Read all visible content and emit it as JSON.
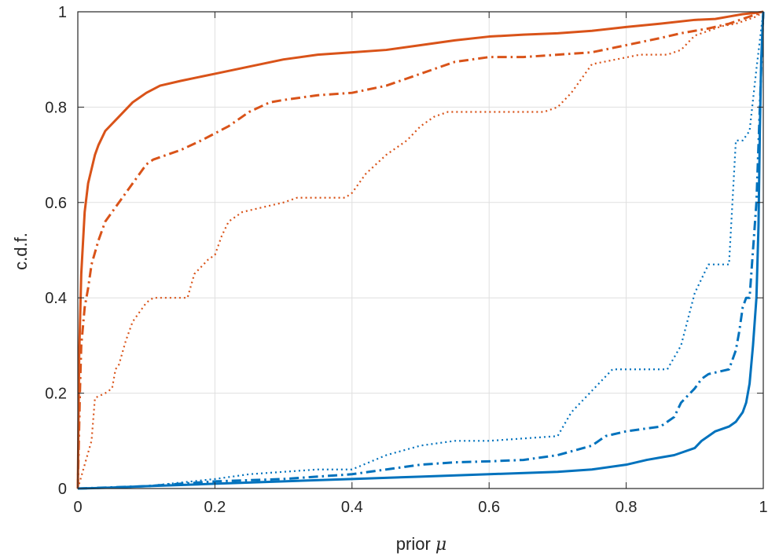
{
  "colors": {
    "orange": "#D95319",
    "blue": "#0072BD",
    "grid": "#dfdfdf",
    "axis": "#262626"
  },
  "chart_data": {
    "type": "line",
    "title": "",
    "xlabel_prefix": "prior",
    "xlabel_symbol": "μ",
    "ylabel": "c.d.f.",
    "xlim": [
      0,
      1
    ],
    "ylim": [
      0,
      1
    ],
    "grid": true,
    "legend": "none",
    "xticks": [
      "0",
      "0.2",
      "0.4",
      "0.6",
      "0.8",
      "1"
    ],
    "yticks": [
      "0",
      "0.2",
      "0.4",
      "0.6",
      "0.8",
      "1"
    ],
    "xtick_values": [
      0,
      0.2,
      0.4,
      0.6,
      0.8,
      1
    ],
    "ytick_values": [
      0,
      0.2,
      0.4,
      0.6,
      0.8,
      1
    ],
    "series": [
      {
        "color": "orange",
        "style": "solid",
        "x": [
          0,
          0.002,
          0.005,
          0.01,
          0.015,
          0.02,
          0.025,
          0.03,
          0.04,
          0.05,
          0.06,
          0.07,
          0.08,
          0.09,
          0.1,
          0.12,
          0.15,
          0.2,
          0.25,
          0.3,
          0.35,
          0.4,
          0.45,
          0.5,
          0.55,
          0.6,
          0.65,
          0.7,
          0.75,
          0.8,
          0.85,
          0.9,
          0.93,
          0.95,
          0.97,
          0.99,
          1
        ],
        "y": [
          0,
          0.28,
          0.45,
          0.58,
          0.64,
          0.67,
          0.7,
          0.72,
          0.75,
          0.765,
          0.78,
          0.795,
          0.81,
          0.82,
          0.83,
          0.845,
          0.855,
          0.87,
          0.885,
          0.9,
          0.91,
          0.915,
          0.92,
          0.93,
          0.94,
          0.948,
          0.952,
          0.955,
          0.96,
          0.968,
          0.975,
          0.983,
          0.985,
          0.99,
          0.995,
          0.998,
          1
        ]
      },
      {
        "color": "orange",
        "style": "dashdot",
        "x": [
          0,
          0.003,
          0.005,
          0.01,
          0.015,
          0.02,
          0.03,
          0.035,
          0.04,
          0.05,
          0.06,
          0.07,
          0.08,
          0.09,
          0.1,
          0.11,
          0.12,
          0.15,
          0.18,
          0.2,
          0.22,
          0.25,
          0.28,
          0.3,
          0.35,
          0.4,
          0.45,
          0.5,
          0.55,
          0.6,
          0.65,
          0.7,
          0.75,
          0.8,
          0.85,
          0.88,
          0.9,
          0.92,
          0.95,
          0.97,
          0.99,
          1
        ],
        "y": [
          0,
          0.2,
          0.3,
          0.38,
          0.42,
          0.47,
          0.52,
          0.54,
          0.56,
          0.58,
          0.6,
          0.62,
          0.64,
          0.66,
          0.68,
          0.69,
          0.695,
          0.71,
          0.73,
          0.745,
          0.76,
          0.79,
          0.81,
          0.815,
          0.825,
          0.83,
          0.845,
          0.87,
          0.895,
          0.905,
          0.905,
          0.91,
          0.915,
          0.93,
          0.945,
          0.955,
          0.96,
          0.965,
          0.975,
          0.985,
          0.995,
          1
        ]
      },
      {
        "color": "orange",
        "style": "dotted",
        "x": [
          0,
          0.02,
          0.025,
          0.04,
          0.05,
          0.055,
          0.06,
          0.07,
          0.08,
          0.09,
          0.1,
          0.11,
          0.12,
          0.16,
          0.17,
          0.19,
          0.2,
          0.21,
          0.22,
          0.24,
          0.27,
          0.3,
          0.32,
          0.39,
          0.4,
          0.42,
          0.45,
          0.48,
          0.5,
          0.52,
          0.54,
          0.6,
          0.68,
          0.7,
          0.72,
          0.74,
          0.75,
          0.82,
          0.86,
          0.88,
          0.9,
          0.92,
          0.94,
          0.96,
          0.97,
          0.99,
          1
        ],
        "y": [
          0,
          0.1,
          0.19,
          0.2,
          0.21,
          0.25,
          0.26,
          0.31,
          0.35,
          0.37,
          0.39,
          0.4,
          0.4,
          0.4,
          0.45,
          0.48,
          0.49,
          0.53,
          0.56,
          0.58,
          0.59,
          0.6,
          0.61,
          0.61,
          0.62,
          0.66,
          0.7,
          0.73,
          0.76,
          0.78,
          0.79,
          0.79,
          0.79,
          0.8,
          0.83,
          0.87,
          0.89,
          0.91,
          0.91,
          0.92,
          0.95,
          0.96,
          0.97,
          0.975,
          0.98,
          0.99,
          1
        ]
      },
      {
        "color": "blue",
        "style": "solid",
        "x": [
          0,
          0.05,
          0.1,
          0.2,
          0.3,
          0.4,
          0.5,
          0.6,
          0.7,
          0.75,
          0.8,
          0.83,
          0.85,
          0.87,
          0.88,
          0.9,
          0.91,
          0.92,
          0.93,
          0.95,
          0.96,
          0.97,
          0.975,
          0.98,
          0.985,
          0.99,
          0.993,
          0.995,
          0.997,
          1
        ],
        "y": [
          0,
          0.002,
          0.005,
          0.01,
          0.015,
          0.02,
          0.025,
          0.03,
          0.035,
          0.04,
          0.05,
          0.06,
          0.065,
          0.07,
          0.075,
          0.085,
          0.1,
          0.11,
          0.12,
          0.13,
          0.14,
          0.16,
          0.18,
          0.22,
          0.3,
          0.4,
          0.55,
          0.75,
          0.9,
          1
        ]
      },
      {
        "color": "blue",
        "style": "dashdot",
        "x": [
          0,
          0.1,
          0.2,
          0.3,
          0.4,
          0.45,
          0.5,
          0.55,
          0.6,
          0.65,
          0.7,
          0.75,
          0.77,
          0.8,
          0.85,
          0.87,
          0.88,
          0.9,
          0.91,
          0.92,
          0.95,
          0.96,
          0.965,
          0.97,
          0.975,
          0.98,
          0.985,
          0.99,
          0.995,
          1
        ],
        "y": [
          0,
          0.005,
          0.015,
          0.02,
          0.03,
          0.04,
          0.05,
          0.055,
          0.057,
          0.06,
          0.07,
          0.09,
          0.11,
          0.12,
          0.13,
          0.15,
          0.18,
          0.21,
          0.23,
          0.24,
          0.25,
          0.29,
          0.33,
          0.38,
          0.4,
          0.4,
          0.5,
          0.6,
          0.8,
          1
        ]
      },
      {
        "color": "blue",
        "style": "dotted",
        "x": [
          0,
          0.1,
          0.2,
          0.25,
          0.3,
          0.35,
          0.4,
          0.45,
          0.5,
          0.55,
          0.6,
          0.7,
          0.72,
          0.74,
          0.76,
          0.78,
          0.86,
          0.88,
          0.9,
          0.92,
          0.95,
          0.96,
          0.97,
          0.98,
          0.99,
          1
        ],
        "y": [
          0,
          0.005,
          0.02,
          0.03,
          0.035,
          0.04,
          0.04,
          0.07,
          0.09,
          0.1,
          0.1,
          0.11,
          0.16,
          0.19,
          0.22,
          0.25,
          0.25,
          0.3,
          0.41,
          0.47,
          0.47,
          0.73,
          0.73,
          0.75,
          0.88,
          1
        ]
      }
    ]
  }
}
